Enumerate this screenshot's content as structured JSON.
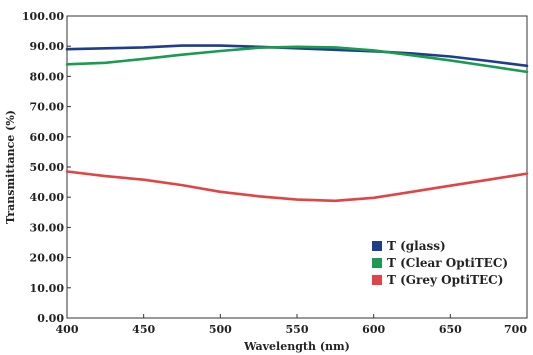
{
  "chart_data": {
    "type": "line",
    "xlabel": "Wavelength (nm)",
    "ylabel": "Transmittance (%)",
    "xlim": [
      400,
      700
    ],
    "ylim": [
      0,
      100
    ],
    "x_ticks": [
      "400",
      "450",
      "500",
      "550",
      "600",
      "650",
      "700"
    ],
    "y_ticks": [
      "0.00",
      "10.00",
      "20.00",
      "30.00",
      "40.00",
      "50.00",
      "60.00",
      "70.00",
      "80.00",
      "90.00",
      "100.00"
    ],
    "grid": false,
    "legend_position": "bottom-right",
    "x": [
      400,
      425,
      450,
      475,
      500,
      525,
      550,
      575,
      600,
      625,
      650,
      675,
      700
    ],
    "series": [
      {
        "name": "T (glass)",
        "color": "#1e3d8c",
        "values": [
          89.0,
          89.3,
          89.6,
          90.2,
          90.2,
          89.8,
          89.3,
          88.8,
          88.3,
          87.6,
          86.6,
          85.1,
          83.5
        ]
      },
      {
        "name": "T (Clear OptiTEC)",
        "color": "#1b9a52",
        "values": [
          84.0,
          84.5,
          85.8,
          87.2,
          88.4,
          89.5,
          89.8,
          89.6,
          88.6,
          87.0,
          85.3,
          83.4,
          81.5
        ]
      },
      {
        "name": "T (Grey OptiTEC)",
        "color": "#e04444",
        "values": [
          48.5,
          47.0,
          45.8,
          44.0,
          41.8,
          40.3,
          39.2,
          38.8,
          39.8,
          41.8,
          43.8,
          45.8,
          47.8
        ]
      }
    ]
  }
}
